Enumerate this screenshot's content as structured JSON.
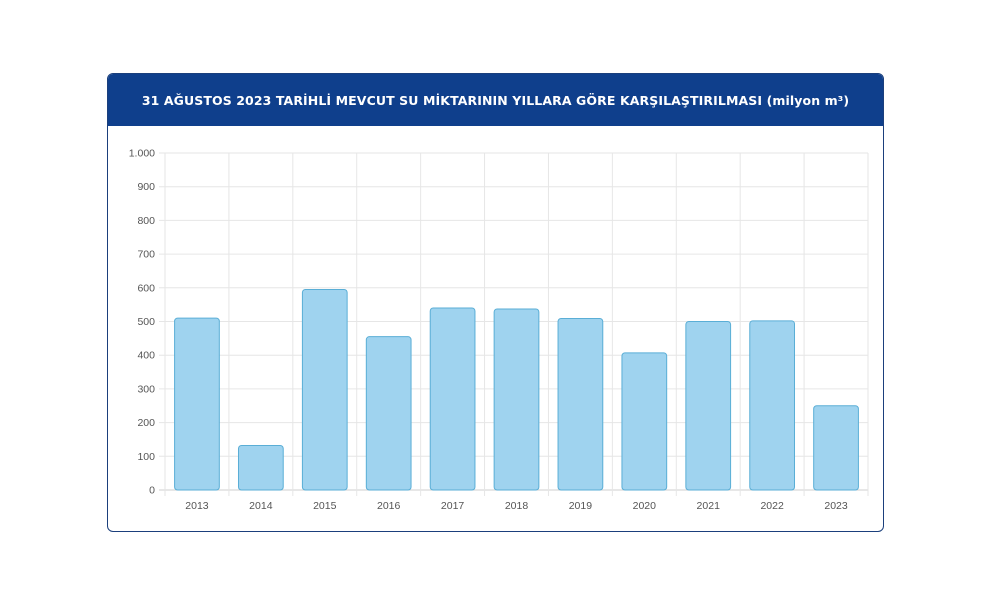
{
  "chart_data": {
    "type": "bar",
    "title": "31 AĞUSTOS 2023 TARİHLİ MEVCUT SU MİKTARININ YILLARA GÖRE KARŞILAŞTIRILMASI (milyon m³)",
    "categories": [
      "2013",
      "2014",
      "2015",
      "2016",
      "2017",
      "2018",
      "2019",
      "2020",
      "2021",
      "2022",
      "2023"
    ],
    "values": [
      510,
      132,
      595,
      455,
      540,
      537,
      509,
      407,
      500,
      502,
      250
    ],
    "ylim": [
      0,
      1000
    ],
    "yticks": [
      0,
      100,
      200,
      300,
      400,
      500,
      600,
      700,
      800,
      900,
      1000
    ],
    "ytick_labels": [
      "0",
      "100",
      "200",
      "300",
      "400",
      "500",
      "600",
      "700",
      "800",
      "900",
      "1.000"
    ],
    "xlabel": "",
    "ylabel": "",
    "grid": true,
    "colors": {
      "bar_fill": "#9fd3ef",
      "bar_stroke": "#5aaed6",
      "header_bg": "#0f3f8c",
      "grid": "#e6e6e6"
    }
  }
}
